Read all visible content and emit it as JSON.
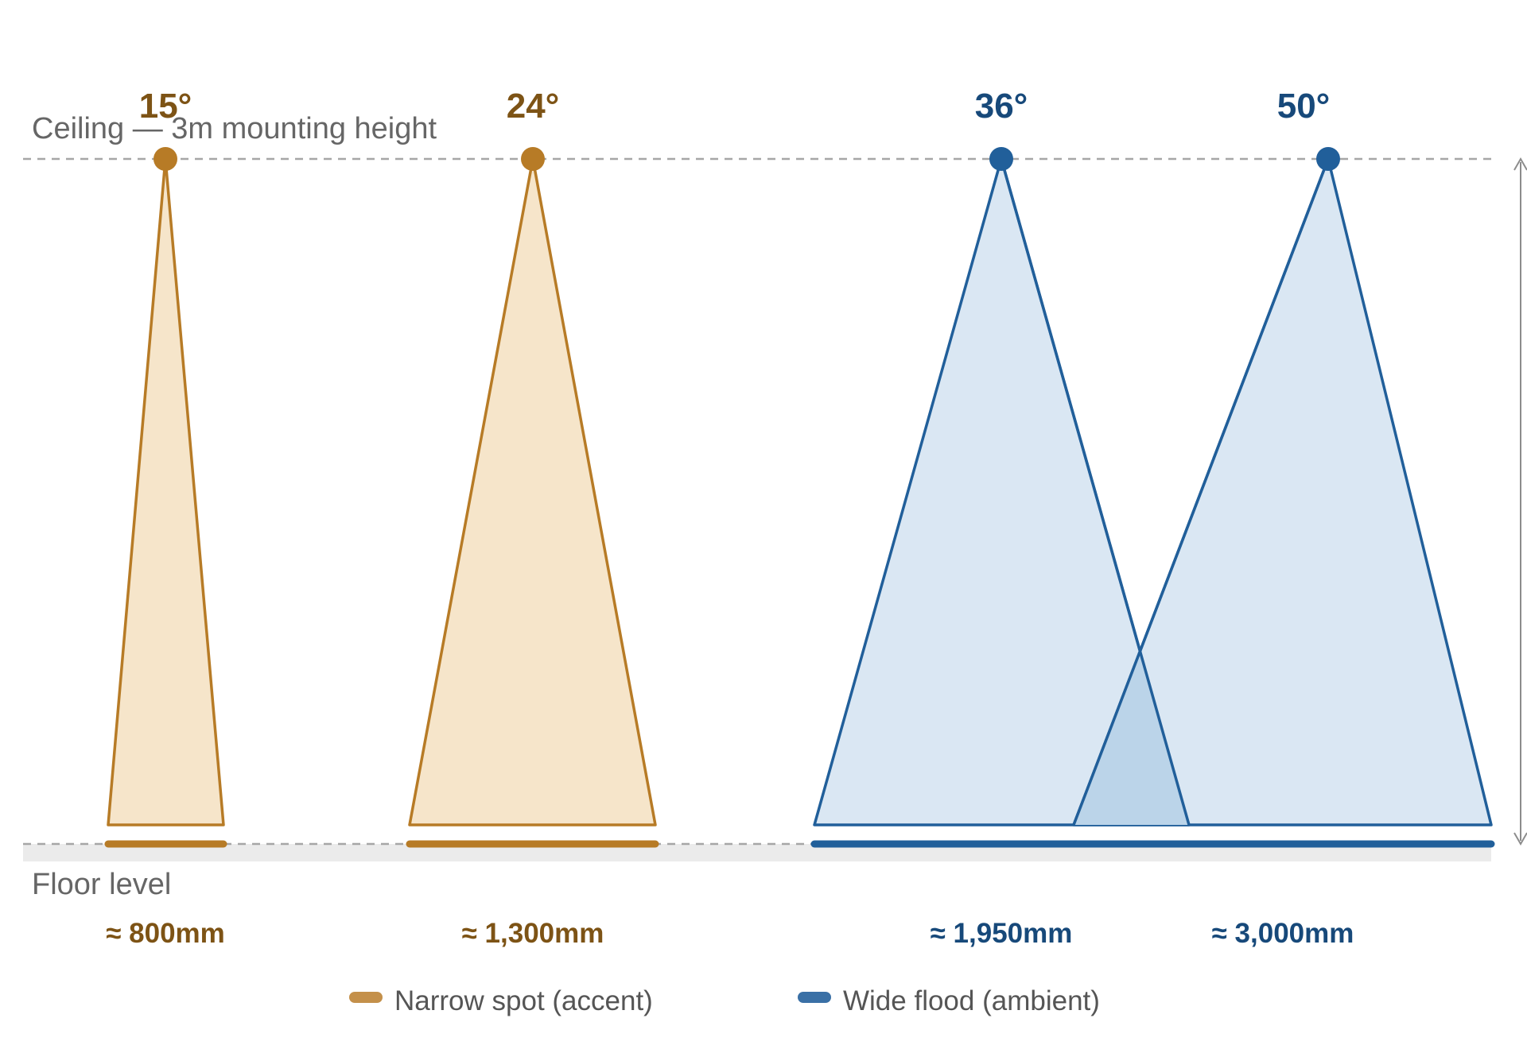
{
  "labels": {
    "ceiling": "Ceiling — 3m mounting height",
    "floor": "Floor level"
  },
  "colors": {
    "narrow_stroke": "#b77b26",
    "narrow_fill": "#f6e5ca",
    "narrow_text": "#7d5315",
    "wide_stroke": "#215f9a",
    "wide_fill": "#dae7f3",
    "wide_overlap": "#bbd4e9",
    "wide_text": "#17497a"
  },
  "beams": [
    {
      "angle_label": "15°",
      "spread_label": "≈ 800mm",
      "type": "narrow"
    },
    {
      "angle_label": "24°",
      "spread_label": "≈ 1,300mm",
      "type": "narrow"
    },
    {
      "angle_label": "36°",
      "spread_label": "≈ 1,950mm",
      "type": "wide"
    },
    {
      "angle_label": "50°",
      "spread_label": "≈ 3,000mm",
      "type": "wide"
    }
  ],
  "legend": {
    "narrow": "Narrow spot (accent)",
    "wide": "Wide flood (ambient)"
  }
}
